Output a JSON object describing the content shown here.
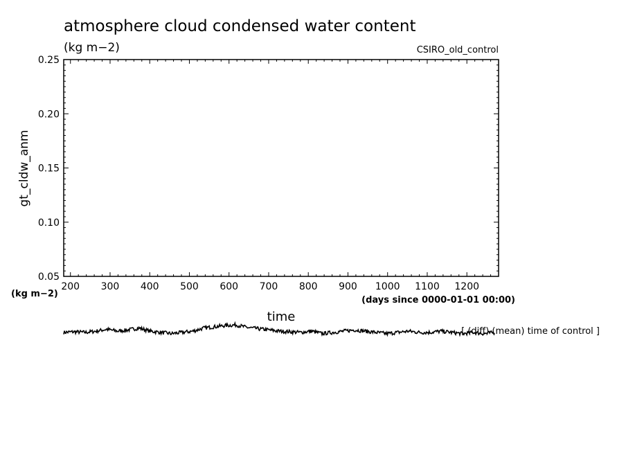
{
  "chart_data": {
    "type": "line",
    "title": "atmosphere cloud condensed water content",
    "units_label": "(kg m−2)",
    "y_units_label": "(kg m−2)",
    "run_label": "CSIRO_old_control",
    "xlabel": "time",
    "x_units_label": "(days since 0000-01-01 00:00)",
    "ylabel": "gt_cldw_anm",
    "xlim": [
      183,
      1280
    ],
    "ylim": [
      0.05,
      0.25
    ],
    "x_ticks": [
      200,
      300,
      400,
      500,
      600,
      700,
      800,
      900,
      1000,
      1100,
      1200
    ],
    "x_tick_labels": [
      "200",
      "300",
      "400",
      "500",
      "600",
      "700",
      "800",
      "900",
      "1000",
      "1100",
      "1200"
    ],
    "y_ticks": [
      0.05,
      0.1,
      0.15,
      0.2,
      0.25
    ],
    "y_tick_labels": [
      "0.05",
      "0.10",
      "0.15",
      "0.20",
      "0.25"
    ],
    "grid": false,
    "legend": "none",
    "series": [
      {
        "x_start": 183,
        "x_end": 1270,
        "y_mean": 0.02525,
        "y_anchors": [
          0.0252,
          0.02525,
          0.0252,
          0.0253,
          0.02545,
          0.0253,
          0.0254,
          0.02555,
          0.0253,
          0.0252,
          0.0251,
          0.0252,
          0.0253,
          0.02555,
          0.02565,
          0.02575,
          0.0258,
          0.0256,
          0.0255,
          0.0254,
          0.0253,
          0.02525,
          0.0252,
          0.0253,
          0.0251,
          0.0252,
          0.0253,
          0.0254,
          0.0253,
          0.0252,
          0.0251,
          0.0252,
          0.0253,
          0.0252,
          0.0252,
          0.0253,
          0.0252,
          0.0251,
          0.0252,
          0.0251,
          0.0252
        ],
        "noise_amplitude": 0.0003
      }
    ],
    "bottom_note": "[ (diff) (mean) time of control ]"
  },
  "colors": {
    "axis": "#000000",
    "line": "#000000",
    "background": "#ffffff"
  }
}
